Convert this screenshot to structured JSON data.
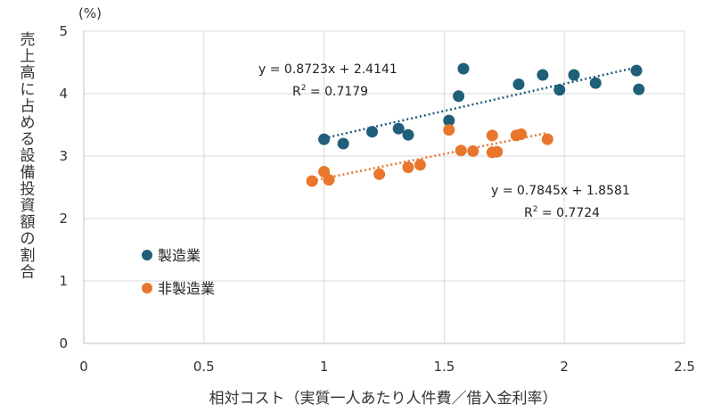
{
  "chart_data": {
    "type": "scatter",
    "title": "",
    "xlabel": "相対コスト（実質一人あたり人件費／借入金利率）",
    "ylabel": "売上高に占める設備投資額の割合",
    "y_unit": "(%)",
    "xlim": [
      0,
      2.5
    ],
    "ylim": [
      0,
      5
    ],
    "x_ticks": [
      "0",
      "0.5",
      "1",
      "1.5",
      "2",
      "2.5"
    ],
    "y_ticks": [
      "0",
      "1",
      "2",
      "3",
      "4",
      "5"
    ],
    "grid": true,
    "legend_position": "middle-left",
    "series": [
      {
        "name": "製造業",
        "color": "#1f5f7a",
        "points": [
          [
            1.0,
            3.27
          ],
          [
            1.08,
            3.2
          ],
          [
            1.2,
            3.39
          ],
          [
            1.31,
            3.44
          ],
          [
            1.35,
            3.34
          ],
          [
            1.52,
            3.57
          ],
          [
            1.56,
            3.96
          ],
          [
            1.58,
            4.4
          ],
          [
            1.81,
            4.15
          ],
          [
            1.91,
            4.3
          ],
          [
            1.98,
            4.06
          ],
          [
            2.04,
            4.3
          ],
          [
            2.13,
            4.17
          ],
          [
            2.3,
            4.37
          ],
          [
            2.31,
            4.07
          ]
        ],
        "trend": {
          "slope": 0.8723,
          "intercept": 2.4141,
          "x_range": [
            1.0,
            2.31
          ]
        },
        "equation": "y = 0.8723x + 2.4141",
        "r2_label": "R",
        "r2_value": " = 0.7179"
      },
      {
        "name": "非製造業",
        "color": "#e8762c",
        "points": [
          [
            0.95,
            2.6
          ],
          [
            1.0,
            2.75
          ],
          [
            1.02,
            2.62
          ],
          [
            1.23,
            2.71
          ],
          [
            1.35,
            2.82
          ],
          [
            1.4,
            2.86
          ],
          [
            1.52,
            3.42
          ],
          [
            1.57,
            3.09
          ],
          [
            1.62,
            3.08
          ],
          [
            1.7,
            3.33
          ],
          [
            1.7,
            3.06
          ],
          [
            1.72,
            3.07
          ],
          [
            1.8,
            3.33
          ],
          [
            1.82,
            3.35
          ],
          [
            1.93,
            3.27
          ]
        ],
        "trend": {
          "slope": 0.7845,
          "intercept": 1.8581,
          "x_range": [
            0.95,
            1.93
          ]
        },
        "equation": "y = 0.7845x + 1.8581",
        "r2_label": "R",
        "r2_value": " = 0.7724"
      }
    ]
  }
}
